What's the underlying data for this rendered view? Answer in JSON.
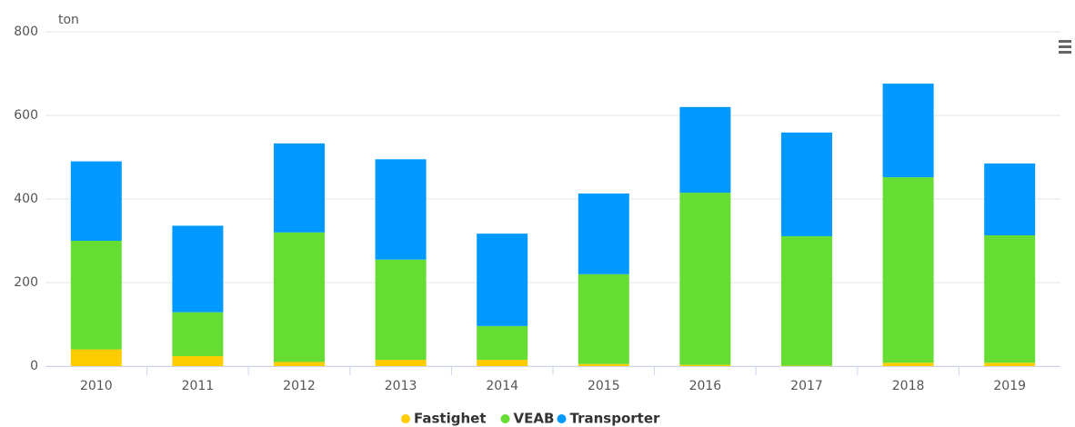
{
  "chart_data": {
    "type": "stacked_bar",
    "y_axis_title": "ton",
    "categories": [
      "2010",
      "2011",
      "2012",
      "2013",
      "2014",
      "2015",
      "2016",
      "2017",
      "2018",
      "2019"
    ],
    "series": [
      {
        "name": "Fastighet",
        "color": "#ffcc00",
        "values": [
          40,
          24,
          10,
          15,
          15,
          5,
          3,
          1,
          8,
          8
        ]
      },
      {
        "name": "VEAB",
        "color": "#66dd33",
        "values": [
          260,
          105,
          310,
          240,
          81,
          215,
          412,
          310,
          444,
          305
        ]
      },
      {
        "name": "Transporter",
        "color": "#0099ff",
        "values": [
          190,
          207,
          213,
          240,
          221,
          193,
          205,
          248,
          224,
          172
        ]
      }
    ],
    "ylim": [
      0,
      800
    ],
    "yticks": [
      0,
      200,
      400,
      600,
      800
    ],
    "grid": true
  }
}
